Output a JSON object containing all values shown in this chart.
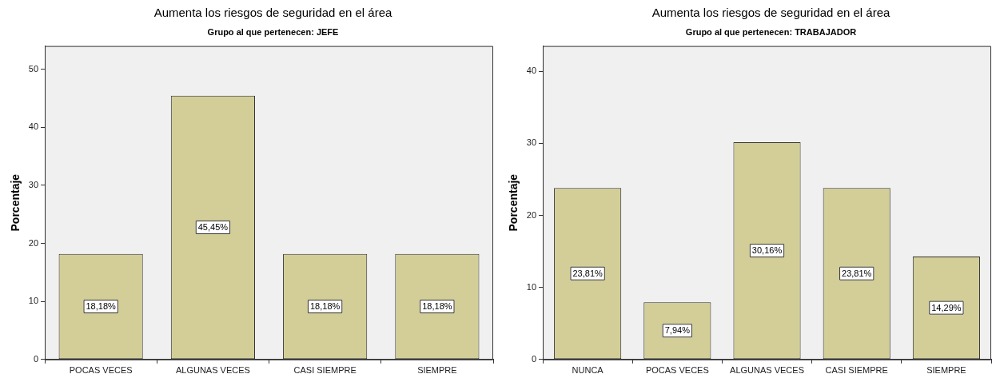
{
  "chart_data": [
    {
      "type": "bar",
      "title": "Aumenta los riesgos de seguridad en el área",
      "subtitle": "Grupo al que pertenecen: JEFE",
      "ylabel": "Porcentaje",
      "categories": [
        "POCAS VECES",
        "ALGUNAS VECES",
        "CASI SIEMPRE",
        "SIEMPRE"
      ],
      "values": [
        18.18,
        45.45,
        18.18,
        18.18
      ],
      "value_labels": [
        "18,18%",
        "45,45%",
        "18,18%",
        "18,18%"
      ],
      "color": "#d3ce97",
      "ylim": [
        0,
        54
      ],
      "yticks": [
        0,
        10,
        20,
        30,
        40,
        50
      ],
      "grid": false,
      "legend": false
    },
    {
      "type": "bar",
      "title": "Aumenta los riesgos de seguridad en el área",
      "subtitle": "Grupo al que pertenecen: TRABAJADOR",
      "ylabel": "Porcentaje",
      "categories": [
        "NUNCA",
        "POCAS VECES",
        "ALGUNAS VECES",
        "CASI SIEMPRE",
        "SIEMPRE"
      ],
      "values": [
        23.81,
        7.94,
        30.16,
        23.81,
        14.29
      ],
      "value_labels": [
        "23,81%",
        "7,94%",
        "30,16%",
        "23,81%",
        "14,29%"
      ],
      "color": "#d3ce97",
      "ylim": [
        0,
        43.5
      ],
      "yticks": [
        0,
        10,
        20,
        30,
        40
      ],
      "grid": false,
      "legend": false
    }
  ]
}
